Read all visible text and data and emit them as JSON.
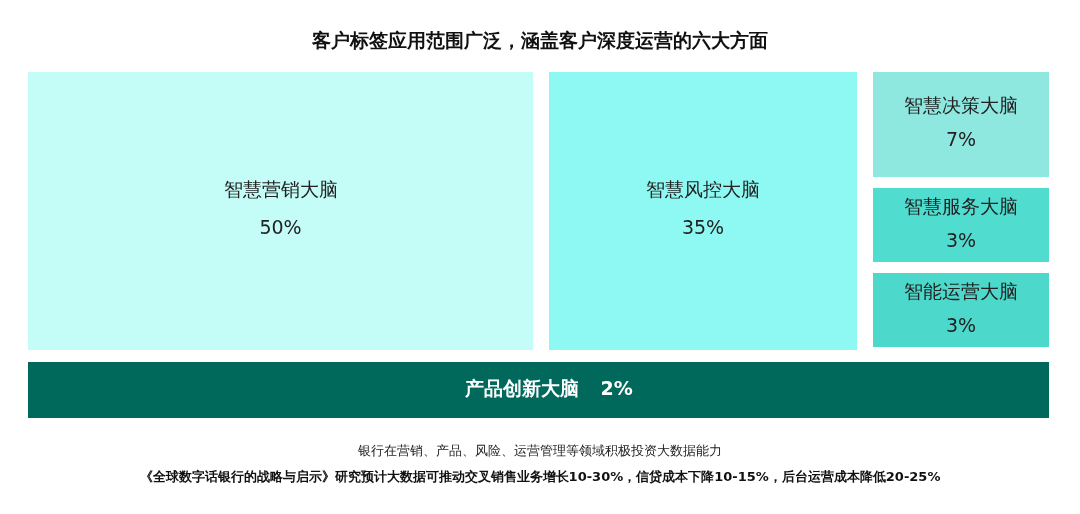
{
  "chart_data": {
    "type": "other",
    "title": "客户标签应用范围广泛，涵盖客户深度运营的六大方面",
    "categories": [
      "智慧营销大脑",
      "智慧风控大脑",
      "智慧决策大脑",
      "智慧服务大脑",
      "智能运营大脑",
      "产品创新大脑"
    ],
    "values": [
      50,
      35,
      7,
      3,
      3,
      2
    ],
    "value_labels": [
      "50%",
      "35%",
      "7%",
      "3%",
      "3%",
      "2%"
    ],
    "colors": [
      "#c4fcf8",
      "#8ef8f2",
      "#8ee8e0",
      "#50ddd0",
      "#4cd9cc",
      "#00695c"
    ],
    "annotations": [
      "银行在营销、产品、风险、运营管理等领域积极投资大数据能力",
      "《全球数字话银行的战略与启示》研究预计大数据可推动交叉销售业务增长10-30%，信贷成本下降10-15%，后台运营成本降低20-25%"
    ]
  }
}
